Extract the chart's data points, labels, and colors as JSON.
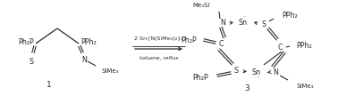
{
  "bg_color": "#ffffff",
  "fig_width": 3.78,
  "fig_height": 1.17,
  "dpi": 100,
  "line_color": "#2a2a2a",
  "font_size_atom": 5.8,
  "font_size_group": 5.8,
  "font_size_label": 6.5,
  "font_size_arrow_text": 4.6,
  "font_size_small": 5.0,
  "reactant_label": "1",
  "product_label": "3",
  "arrow_text_top": "2 Sn{N(SiMe₃)₂}₂",
  "arrow_text_bottom": "toluene, reflux"
}
